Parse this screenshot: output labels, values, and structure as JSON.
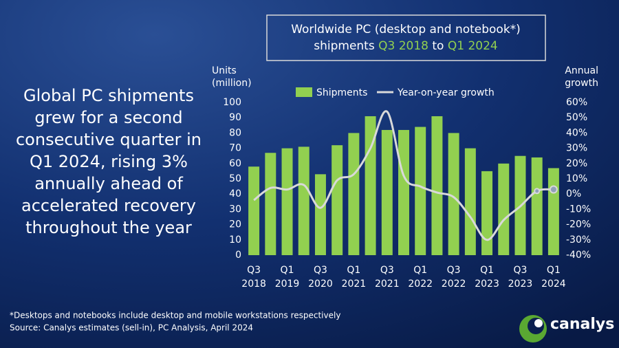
{
  "headline": [
    "Global PC shipments",
    "grew for a second",
    "consecutive quarter in",
    "Q1 2024, rising 3%",
    "annually ahead of",
    "accelerated recovery",
    "throughout the year"
  ],
  "chart_data": {
    "type": "bar-line",
    "title": [
      "Worldwide PC (desktop and notebook*)",
      "shipments",
      "Q3 2018",
      "to",
      "Q1 2024"
    ],
    "title_highlight_color": "#92d050",
    "y_label": [
      "Units",
      "(million)"
    ],
    "y2_label": [
      "Annual",
      "growth"
    ],
    "categories": [
      "Q3 2018",
      null,
      "Q1 2019",
      null,
      "Q3 2020",
      null,
      "Q1 2021",
      null,
      "Q3 2021",
      null,
      "Q1 2022",
      null,
      "Q3 2022",
      null,
      "Q1 2023",
      null,
      "Q3 2023",
      null,
      "Q1 2024"
    ],
    "series": [
      {
        "name": "Shipments",
        "color": "#92d050",
        "values": [
          58,
          67,
          70,
          71,
          53,
          72,
          80,
          91,
          82,
          82,
          84,
          91,
          80,
          70,
          55,
          60,
          65,
          64,
          57
        ]
      },
      {
        "name": "Year-on-year growth",
        "color": "#d9d9d9",
        "axis": "y2",
        "values": [
          -4,
          4,
          3,
          6,
          -9,
          9,
          13,
          30,
          54,
          12,
          5,
          1,
          -2,
          -15,
          -30,
          -17,
          -8,
          2,
          3
        ]
      }
    ],
    "ylim": [
      0,
      100
    ],
    "yticks": [
      0,
      10,
      20,
      30,
      40,
      50,
      60,
      70,
      80,
      90,
      100
    ],
    "y2lim": [
      -40,
      60
    ],
    "y2ticks": [
      {
        "value": -40,
        "label": "-40%"
      },
      {
        "value": -30,
        "label": "-30%"
      },
      {
        "value": -20,
        "label": "-20%"
      },
      {
        "value": -10,
        "label": "-10%"
      },
      {
        "value": 0,
        "label": "0%"
      },
      {
        "value": 10,
        "label": "10%"
      },
      {
        "value": 20,
        "label": "20%"
      },
      {
        "value": 30,
        "label": "30%"
      },
      {
        "value": 40,
        "label": "40%"
      },
      {
        "value": 50,
        "label": "50%"
      },
      {
        "value": 60,
        "label": "60%"
      }
    ]
  },
  "footnote": "*Desktops and notebooks include desktop and mobile workstations respectively",
  "source": "Source: Canalys estimates (sell-in), PC Analysis, April 2024",
  "logo": "canalys"
}
